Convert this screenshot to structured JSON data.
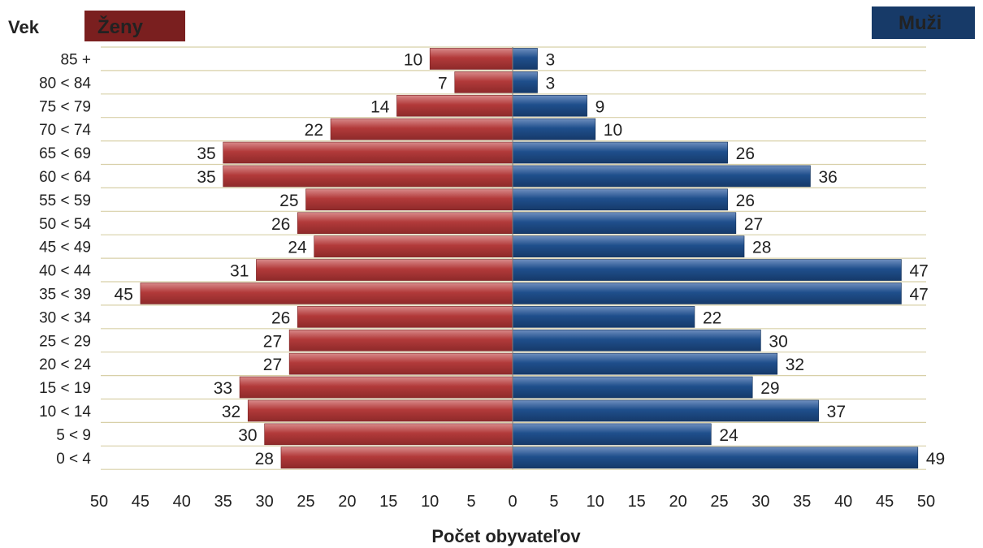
{
  "chart_data": {
    "type": "bar",
    "orientation": "horizontal",
    "subtype": "population-pyramid",
    "title": "",
    "xlabel": "Počet obyvateľov",
    "ylabel": "Vek",
    "xlim": [
      0,
      50
    ],
    "x_ticks": [
      "50",
      "45",
      "40",
      "35",
      "30",
      "25",
      "20",
      "15",
      "10",
      "5",
      "0",
      "5",
      "10",
      "15",
      "20",
      "25",
      "30",
      "35",
      "40",
      "45",
      "50"
    ],
    "categories": [
      "85 +",
      "80 < 84",
      "75 < 79",
      "70 < 74",
      "65 < 69",
      "60 < 64",
      "55 < 59",
      "50 < 54",
      "45 < 49",
      "40 < 44",
      "35 < 39",
      "30 < 34",
      "25 < 29",
      "20 < 24",
      "15 < 19",
      "10 < 14",
      "5 < 9",
      "0 < 4"
    ],
    "series": [
      {
        "name": "Ženy",
        "side": "left",
        "color": "#b23a3a",
        "values": [
          10,
          7,
          14,
          22,
          35,
          35,
          25,
          26,
          24,
          31,
          45,
          26,
          27,
          27,
          33,
          32,
          30,
          28
        ]
      },
      {
        "name": "Muži",
        "side": "right",
        "color": "#1f4f8c",
        "values": [
          3,
          3,
          9,
          10,
          26,
          36,
          26,
          27,
          28,
          47,
          47,
          22,
          30,
          32,
          29,
          37,
          24,
          49
        ]
      }
    ],
    "legend": {
      "left_label": "Ženy",
      "right_label": "Muži",
      "placement": "top"
    },
    "grid": true
  }
}
